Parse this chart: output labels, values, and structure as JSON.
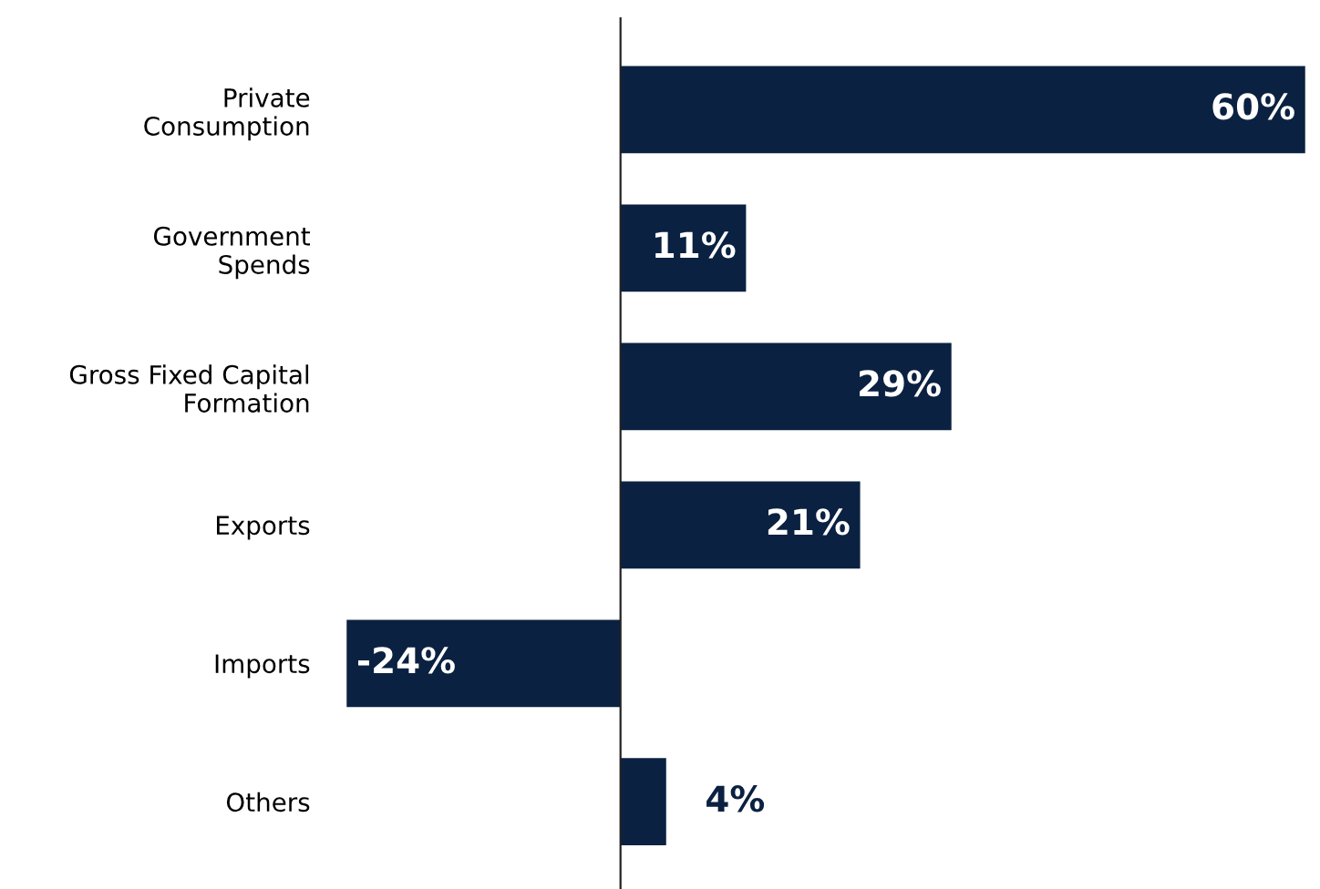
{
  "chart_data": {
    "type": "bar",
    "orientation": "horizontal",
    "categories": [
      "Private\nConsumption",
      "Government\nSpends",
      "Gross Fixed Capital\nFormation",
      "Exports",
      "Imports",
      "Others"
    ],
    "values": [
      60,
      11,
      29,
      21,
      -24,
      4
    ],
    "value_labels": [
      "60%",
      "11%",
      "29%",
      "21%",
      "-24%",
      "4%"
    ],
    "color": "#0b2141",
    "xlim": [
      -24.5,
      60.5
    ],
    "grid": false,
    "legend": false
  }
}
